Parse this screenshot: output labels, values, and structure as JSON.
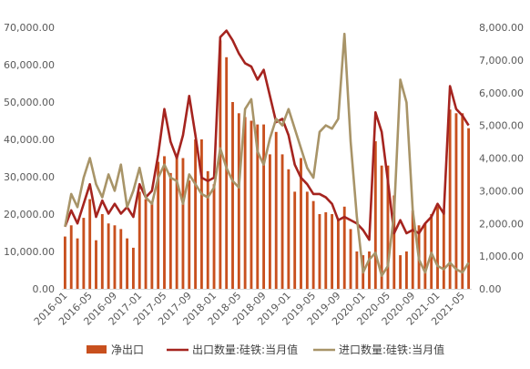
{
  "chart_data": {
    "type": "bar",
    "title": "",
    "xlabel": "",
    "ylabel": "",
    "y_left_lim": [
      0,
      70000
    ],
    "y_right_lim": [
      0,
      8000
    ],
    "y_left_ticks": [
      "0.00",
      "10,000.00",
      "20,000.00",
      "30,000.00",
      "40,000.00",
      "50,000.00",
      "60,000.00",
      "70,000.00"
    ],
    "y_right_ticks": [
      "0.00",
      "1,000.00",
      "2,000.00",
      "3,000.00",
      "4,000.00",
      "5,000.00",
      "6,000.00",
      "7,000.00",
      "8,000.00"
    ],
    "x_tick_labels": [
      "2016-01",
      "2016-05",
      "2016-09",
      "2017-01",
      "2017-05",
      "2017-09",
      "2018-01",
      "2018-05",
      "2018-09",
      "2019-01",
      "2019-05",
      "2019-09",
      "2020-01",
      "2020-05",
      "2020-09",
      "2021-01",
      "2021-05"
    ],
    "x_tick_every": 4,
    "grid": false,
    "legend_position": "bottom",
    "colors": {
      "net_export": "#c8501e",
      "export": "#a5241f",
      "import": "#a89468",
      "axis_text": "#595959"
    },
    "months": [
      "2016-01",
      "2016-02",
      "2016-03",
      "2016-04",
      "2016-05",
      "2016-06",
      "2016-07",
      "2016-08",
      "2016-09",
      "2016-10",
      "2016-11",
      "2016-12",
      "2017-01",
      "2017-02",
      "2017-03",
      "2017-04",
      "2017-05",
      "2017-06",
      "2017-07",
      "2017-08",
      "2017-09",
      "2017-10",
      "2017-11",
      "2017-12",
      "2018-01",
      "2018-02",
      "2018-03",
      "2018-04",
      "2018-05",
      "2018-06",
      "2018-07",
      "2018-08",
      "2018-09",
      "2018-10",
      "2018-11",
      "2018-12",
      "2019-01",
      "2019-02",
      "2019-03",
      "2019-04",
      "2019-05",
      "2019-06",
      "2019-07",
      "2019-08",
      "2019-09",
      "2019-10",
      "2019-11",
      "2019-12",
      "2020-01",
      "2020-02",
      "2020-03",
      "2020-04",
      "2020-05",
      "2020-06",
      "2020-07",
      "2020-08",
      "2020-09",
      "2020-10",
      "2020-11",
      "2020-12",
      "2021-01",
      "2021-02",
      "2021-03",
      "2021-04",
      "2021-05",
      "2021-06"
    ],
    "series": [
      {
        "name": "净出口",
        "kind": "bar",
        "axis": "left",
        "values": [
          14000,
          17000,
          13500,
          19000,
          24000,
          13000,
          20000,
          17500,
          17000,
          16000,
          13500,
          11000,
          26000,
          24000,
          23000,
          34000,
          35500,
          31000,
          35500,
          35000,
          29000,
          40000,
          40000,
          31500,
          28000,
          66500,
          62000,
          50000,
          47000,
          46000,
          45000,
          44000,
          44000,
          36000,
          42000,
          36000,
          32000,
          26000,
          35000,
          26000,
          23500,
          20000,
          20500,
          20000,
          18500,
          22000,
          16000,
          10000,
          9000,
          10000,
          39500,
          33000,
          33000,
          25000,
          9000,
          10000,
          21000,
          17000,
          17500,
          20000,
          22000,
          21000,
          48000,
          47000,
          47000,
          43000
        ]
      },
      {
        "name": "出口数量:硅铁:当月值",
        "kind": "line",
        "axis": "right",
        "values": [
          1900,
          2400,
          2000,
          2600,
          3200,
          2200,
          2700,
          2300,
          2600,
          2300,
          2500,
          2200,
          3200,
          2800,
          3000,
          4100,
          5500,
          4500,
          4000,
          4700,
          5900,
          4700,
          3400,
          3300,
          3400,
          7700,
          7900,
          7600,
          7200,
          6900,
          6800,
          6400,
          6700,
          5900,
          5100,
          5200,
          4700,
          3800,
          3400,
          3200,
          2900,
          2900,
          2800,
          2600,
          2100,
          2200,
          2100,
          2000,
          1800,
          1500,
          5400,
          4800,
          3300,
          1700,
          2100,
          1700,
          1800,
          1700,
          2000,
          2200,
          2600,
          2300,
          6200,
          5500,
          5300,
          5000
        ]
      },
      {
        "name": "进口数量:硅铁:当月值",
        "kind": "line",
        "axis": "right",
        "values": [
          1900,
          2900,
          2500,
          3400,
          4000,
          3200,
          2800,
          3500,
          3000,
          3800,
          2500,
          3000,
          3700,
          2800,
          2600,
          3400,
          3800,
          3400,
          3300,
          2600,
          3500,
          3200,
          2900,
          2800,
          3100,
          4300,
          3700,
          3300,
          3100,
          5500,
          5800,
          4200,
          3800,
          4600,
          5200,
          5000,
          5500,
          4900,
          4300,
          3700,
          3400,
          4800,
          5000,
          4900,
          5200,
          7800,
          4500,
          2200,
          500,
          900,
          1100,
          400,
          700,
          2300,
          6400,
          5700,
          2400,
          900,
          500,
          1100,
          700,
          600,
          800,
          600,
          500,
          800
        ]
      }
    ]
  }
}
